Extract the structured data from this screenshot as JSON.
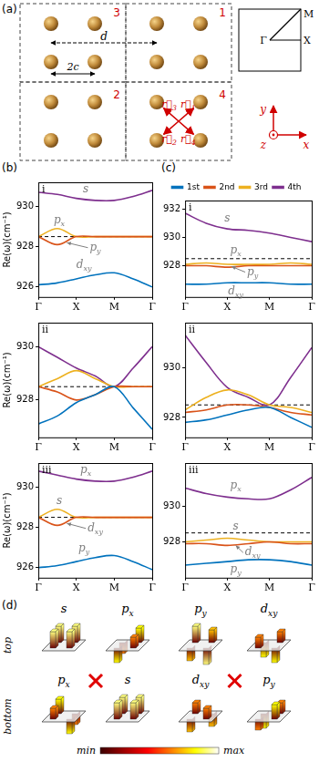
{
  "chart_data": [
    {
      "type": "line",
      "title": "i",
      "y_label": "Re(ω)(cm⁻¹)",
      "x": [
        0,
        0.5,
        1,
        1.5,
        2,
        2.5,
        3
      ],
      "xlim": [
        0,
        3
      ],
      "xticks": [
        {
          "value": 0,
          "label": "Γ"
        },
        {
          "value": 1,
          "label": "X"
        },
        {
          "value": 2,
          "label": "M"
        },
        {
          "value": 3,
          "label": "Γ"
        }
      ],
      "ylim": [
        925.5,
        931.2
      ],
      "yticks": [
        926,
        928,
        930
      ],
      "grid": false,
      "reference_line": {
        "y": 928.5,
        "line_style": "dashed",
        "color": "#000000"
      },
      "series": [
        {
          "color": "#0072bd",
          "values": [
            926.1,
            926.2,
            926.4,
            926.6,
            926.7,
            926.4,
            926.0
          ]
        },
        {
          "color": "#d95319",
          "values": [
            928.5,
            928.1,
            928.5,
            928.5,
            928.5,
            928.5,
            928.5
          ]
        },
        {
          "color": "#edb120",
          "values": [
            928.5,
            928.9,
            928.5,
            928.5,
            928.5,
            928.5,
            928.5
          ]
        },
        {
          "color": "#7e2f8e",
          "values": [
            930.7,
            930.6,
            930.4,
            930.3,
            930.3,
            930.5,
            930.8
          ]
        }
      ],
      "annotations": [
        {
          "text": "s",
          "x": 1.25,
          "y": 930.85
        },
        {
          "text": "p",
          "subscript": "x",
          "x": 0.55,
          "y": 929.3
        },
        {
          "text": "p",
          "subscript": "y",
          "x": 1.5,
          "y": 927.95,
          "arrow_to": [
            0.75,
            928.2
          ]
        },
        {
          "text": "d",
          "subscript": "xy",
          "x": 1.2,
          "y": 927.1
        }
      ]
    },
    {
      "type": "line",
      "title": "ii",
      "y_label": "Re(ω)(cm⁻¹)",
      "x": [
        0,
        0.5,
        1,
        1.5,
        2,
        2.5,
        3
      ],
      "xlim": [
        0,
        3
      ],
      "xticks": [
        {
          "value": 0,
          "label": "Γ"
        },
        {
          "value": 1,
          "label": "X"
        },
        {
          "value": 2,
          "label": "M"
        },
        {
          "value": 3,
          "label": "Γ"
        }
      ],
      "ylim": [
        926.6,
        930.9
      ],
      "yticks": [
        928,
        930
      ],
      "grid": false,
      "reference_line": {
        "y": 928.5,
        "line_style": "dashed",
        "color": "#000000"
      },
      "series": [
        {
          "color": "#0072bd",
          "values": [
            927.1,
            927.4,
            927.9,
            928.2,
            928.5,
            927.7,
            926.9
          ]
        },
        {
          "color": "#d95319",
          "values": [
            928.5,
            928.3,
            928.0,
            928.2,
            928.5,
            928.5,
            928.5
          ]
        },
        {
          "color": "#edb120",
          "values": [
            928.5,
            928.8,
            929.1,
            928.8,
            928.5,
            928.5,
            928.5
          ]
        },
        {
          "color": "#7e2f8e",
          "values": [
            930.0,
            929.6,
            929.2,
            928.9,
            928.5,
            929.2,
            930.0
          ]
        }
      ]
    },
    {
      "type": "line",
      "title": "iii",
      "y_label": "Re(ω)(cm⁻¹)",
      "x": [
        0,
        0.5,
        1,
        1.5,
        2,
        2.5,
        3
      ],
      "xlim": [
        0,
        3
      ],
      "xticks": [
        {
          "value": 0,
          "label": "Γ"
        },
        {
          "value": 1,
          "label": "X"
        },
        {
          "value": 2,
          "label": "M"
        },
        {
          "value": 3,
          "label": "Γ"
        }
      ],
      "ylim": [
        925.5,
        931.2
      ],
      "yticks": [
        926,
        928,
        930
      ],
      "grid": false,
      "reference_line": {
        "y": 928.5,
        "line_style": "dashed",
        "color": "#000000"
      },
      "series": [
        {
          "color": "#0072bd",
          "values": [
            926.0,
            926.1,
            926.3,
            926.5,
            926.6,
            926.3,
            925.9
          ]
        },
        {
          "color": "#d95319",
          "values": [
            928.5,
            928.1,
            928.5,
            928.5,
            928.5,
            928.5,
            928.5
          ]
        },
        {
          "color": "#edb120",
          "values": [
            928.5,
            928.9,
            928.5,
            928.5,
            928.5,
            928.5,
            928.5
          ]
        },
        {
          "color": "#7e2f8e",
          "values": [
            930.8,
            930.6,
            930.4,
            930.3,
            930.3,
            930.5,
            930.8
          ]
        }
      ],
      "annotations": [
        {
          "text": "p",
          "subscript": "x",
          "x": 1.25,
          "y": 930.85
        },
        {
          "text": "s",
          "x": 0.55,
          "y": 929.3
        },
        {
          "text": "d",
          "subscript": "xy",
          "x": 1.5,
          "y": 927.95,
          "arrow_to": [
            0.75,
            928.2
          ]
        },
        {
          "text": "p",
          "subscript": "y",
          "x": 1.2,
          "y": 926.95
        }
      ]
    },
    {
      "type": "line",
      "title": "i",
      "legend": "top",
      "x": [
        0,
        0.5,
        1,
        1.5,
        2,
        2.5,
        3
      ],
      "xlim": [
        0,
        3
      ],
      "xticks": [
        {
          "value": 0,
          "label": "Γ"
        },
        {
          "value": 1,
          "label": "X"
        },
        {
          "value": 2,
          "label": "M"
        },
        {
          "value": 3,
          "label": "Γ"
        }
      ],
      "ylim": [
        925.8,
        932.6
      ],
      "yticks": [
        928,
        930,
        932
      ],
      "grid": false,
      "reference_line": {
        "y": 928.5,
        "line_style": "dashed",
        "color": "#000000"
      },
      "series": [
        {
          "name": "1st",
          "color": "#0072bd",
          "values": [
            926.7,
            926.7,
            926.8,
            926.8,
            926.8,
            926.7,
            926.7
          ]
        },
        {
          "name": "2nd",
          "color": "#d95319",
          "values": [
            928.0,
            928.0,
            927.9,
            928.0,
            928.0,
            928.0,
            928.0
          ]
        },
        {
          "name": "3rd",
          "color": "#edb120",
          "values": [
            928.1,
            928.2,
            928.1,
            928.1,
            928.1,
            928.2,
            928.1
          ]
        },
        {
          "name": "4th",
          "color": "#7e2f8e",
          "values": [
            931.7,
            931.0,
            930.6,
            930.5,
            930.3,
            930.0,
            929.7
          ]
        }
      ],
      "annotations": [
        {
          "text": "s",
          "x": 1.0,
          "y": 931.35
        },
        {
          "text": "p",
          "subscript": "x",
          "x": 1.2,
          "y": 929.1
        },
        {
          "text": "p",
          "subscript": "y",
          "x": 1.6,
          "y": 927.55,
          "arrow_to": [
            1.1,
            927.95
          ]
        },
        {
          "text": "d",
          "subscript": "xy",
          "x": 1.2,
          "y": 926.2
        }
      ]
    },
    {
      "type": "line",
      "title": "ii",
      "x": [
        0,
        0.5,
        1,
        1.5,
        2,
        2.5,
        3
      ],
      "xlim": [
        0,
        3
      ],
      "xticks": [
        {
          "value": 0,
          "label": "Γ"
        },
        {
          "value": 1,
          "label": "X"
        },
        {
          "value": 2,
          "label": "M"
        },
        {
          "value": 3,
          "label": "Γ"
        }
      ],
      "ylim": [
        927.2,
        931.8
      ],
      "yticks": [
        928,
        930
      ],
      "grid": false,
      "reference_line": {
        "y": 928.5,
        "line_style": "dashed",
        "color": "#000000"
      },
      "series": [
        {
          "color": "#0072bd",
          "values": [
            927.8,
            927.9,
            928.1,
            928.3,
            928.4,
            928.0,
            927.6
          ]
        },
        {
          "color": "#d95319",
          "values": [
            928.2,
            928.3,
            928.5,
            928.5,
            928.4,
            928.2,
            928.1
          ]
        },
        {
          "color": "#edb120",
          "values": [
            928.3,
            928.8,
            929.1,
            928.9,
            928.5,
            928.4,
            928.2
          ]
        },
        {
          "color": "#7e2f8e",
          "values": [
            931.3,
            930.2,
            929.2,
            928.8,
            928.5,
            929.6,
            930.8
          ]
        }
      ]
    },
    {
      "type": "line",
      "title": "iii",
      "x": [
        0,
        0.5,
        1,
        1.5,
        2,
        2.5,
        3
      ],
      "xlim": [
        0,
        3
      ],
      "xticks": [
        {
          "value": 0,
          "label": "Γ"
        },
        {
          "value": 1,
          "label": "X"
        },
        {
          "value": 2,
          "label": "M"
        },
        {
          "value": 3,
          "label": "Γ"
        }
      ],
      "ylim": [
        926.0,
        932.4
      ],
      "yticks": [
        928,
        930
      ],
      "grid": false,
      "reference_line": {
        "y": 928.5,
        "line_style": "dashed",
        "color": "#000000"
      },
      "series": [
        {
          "color": "#0072bd",
          "values": [
            926.7,
            926.8,
            926.9,
            927.0,
            927.0,
            926.9,
            926.7
          ]
        },
        {
          "color": "#d95319",
          "values": [
            927.9,
            927.9,
            927.8,
            927.9,
            928.0,
            927.9,
            927.9
          ]
        },
        {
          "color": "#edb120",
          "values": [
            928.0,
            928.1,
            928.2,
            928.1,
            928.0,
            928.0,
            928.0
          ]
        },
        {
          "color": "#7e2f8e",
          "values": [
            931.0,
            930.7,
            930.5,
            930.4,
            930.4,
            930.9,
            931.6
          ]
        }
      ],
      "annotations": [
        {
          "text": "p",
          "subscript": "x",
          "x": 1.2,
          "y": 931.15
        },
        {
          "text": "s",
          "x": 1.2,
          "y": 928.85
        },
        {
          "text": "d",
          "subscript": "xy",
          "x": 1.6,
          "y": 927.4,
          "arrow_to": [
            1.2,
            927.8
          ]
        },
        {
          "text": "p",
          "subscript": "y",
          "x": 1.2,
          "y": 926.45
        }
      ]
    }
  ],
  "panel_labels": [
    "(a)",
    "(b)",
    "(c)",
    "(d)"
  ],
  "lattice": {
    "cell_numbers": [
      "1",
      "2",
      "3",
      "4"
    ],
    "d": "d",
    "c": "2c",
    "vectors": [
      {
        "text": "r⃗",
        "subscript": "1"
      },
      {
        "text": "r⃗",
        "subscript": "2"
      },
      {
        "text": "r⃗",
        "subscript": "3"
      },
      {
        "text": "r⃗",
        "subscript": "4"
      }
    ]
  },
  "brillouin_zone": {
    "points": [
      "Γ",
      "X",
      "M"
    ]
  },
  "axes_labels": [
    "x",
    "y",
    "z"
  ],
  "field_maps": {
    "rows": [
      {
        "label": "top",
        "groups": [
          {
            "mode": {
              "text": "s"
            },
            "values": [
              0.9,
              0.9,
              0.9,
              0.9
            ]
          },
          {
            "mode": {
              "text": "p",
              "subscript": "x"
            },
            "values": [
              0.8,
              -0.8,
              -0.6,
              0.6
            ]
          },
          {
            "mode": {
              "text": "p",
              "subscript": "y"
            },
            "values": [
              0.7,
              -0.7,
              0.9,
              -0.9
            ]
          },
          {
            "mode": {
              "text": "d",
              "subscript": "xy"
            },
            "values": [
              0.6,
              0.6,
              -0.8,
              -0.8
            ]
          }
        ]
      },
      {
        "label": "bottom",
        "groups": [
          {
            "mode": {
              "text": "p",
              "subscript": "x"
            },
            "values": [
              -0.6,
              0.6,
              0.8,
              -0.8
            ]
          },
          {
            "mode": {
              "text": "s"
            },
            "values": [
              0.9,
              0.9,
              0.9,
              0.9
            ]
          },
          {
            "mode": {
              "text": "d",
              "subscript": "xy"
            },
            "values": [
              -0.7,
              -0.7,
              0.6,
              0.6
            ]
          },
          {
            "mode": {
              "text": "p",
              "subscript": "y"
            },
            "values": [
              0.6,
              -0.6,
              -0.8,
              0.8
            ]
          }
        ]
      }
    ],
    "colorbar": {
      "range": [
        0,
        1
      ],
      "labels": [
        "min",
        "max"
      ]
    }
  }
}
